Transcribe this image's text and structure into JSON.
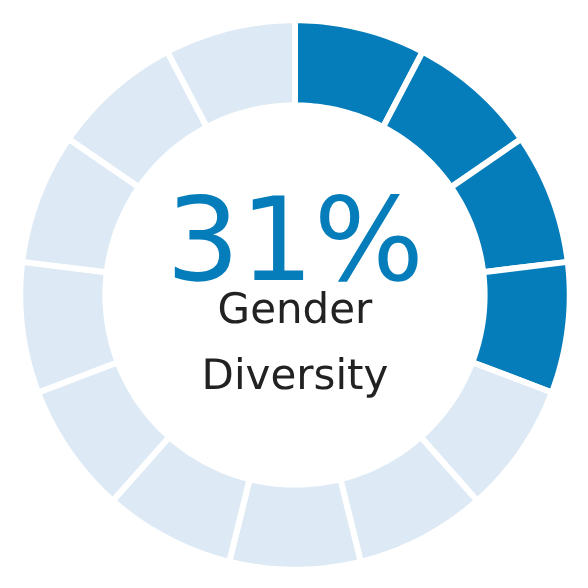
{
  "chart_data": {
    "type": "donut",
    "title": "31%",
    "subtitle": "Gender Diversity",
    "categories": [
      null,
      null,
      null,
      null,
      null,
      null,
      null,
      null,
      null,
      null,
      null,
      null,
      null
    ],
    "values": [
      7.69,
      7.69,
      7.69,
      7.69,
      7.69,
      7.69,
      7.69,
      7.69,
      7.69,
      7.69,
      7.69,
      7.69,
      7.69
    ],
    "colors": [
      "#057dba",
      "#057dba",
      "#057dba",
      "#057dba",
      "#ddeaf6",
      "#ddeaf6",
      "#ddeaf6",
      "#ddeaf6",
      "#ddeaf6",
      "#ddeaf6",
      "#ddeaf6",
      "#ddeaf6",
      "#ddeaf6"
    ]
  }
}
